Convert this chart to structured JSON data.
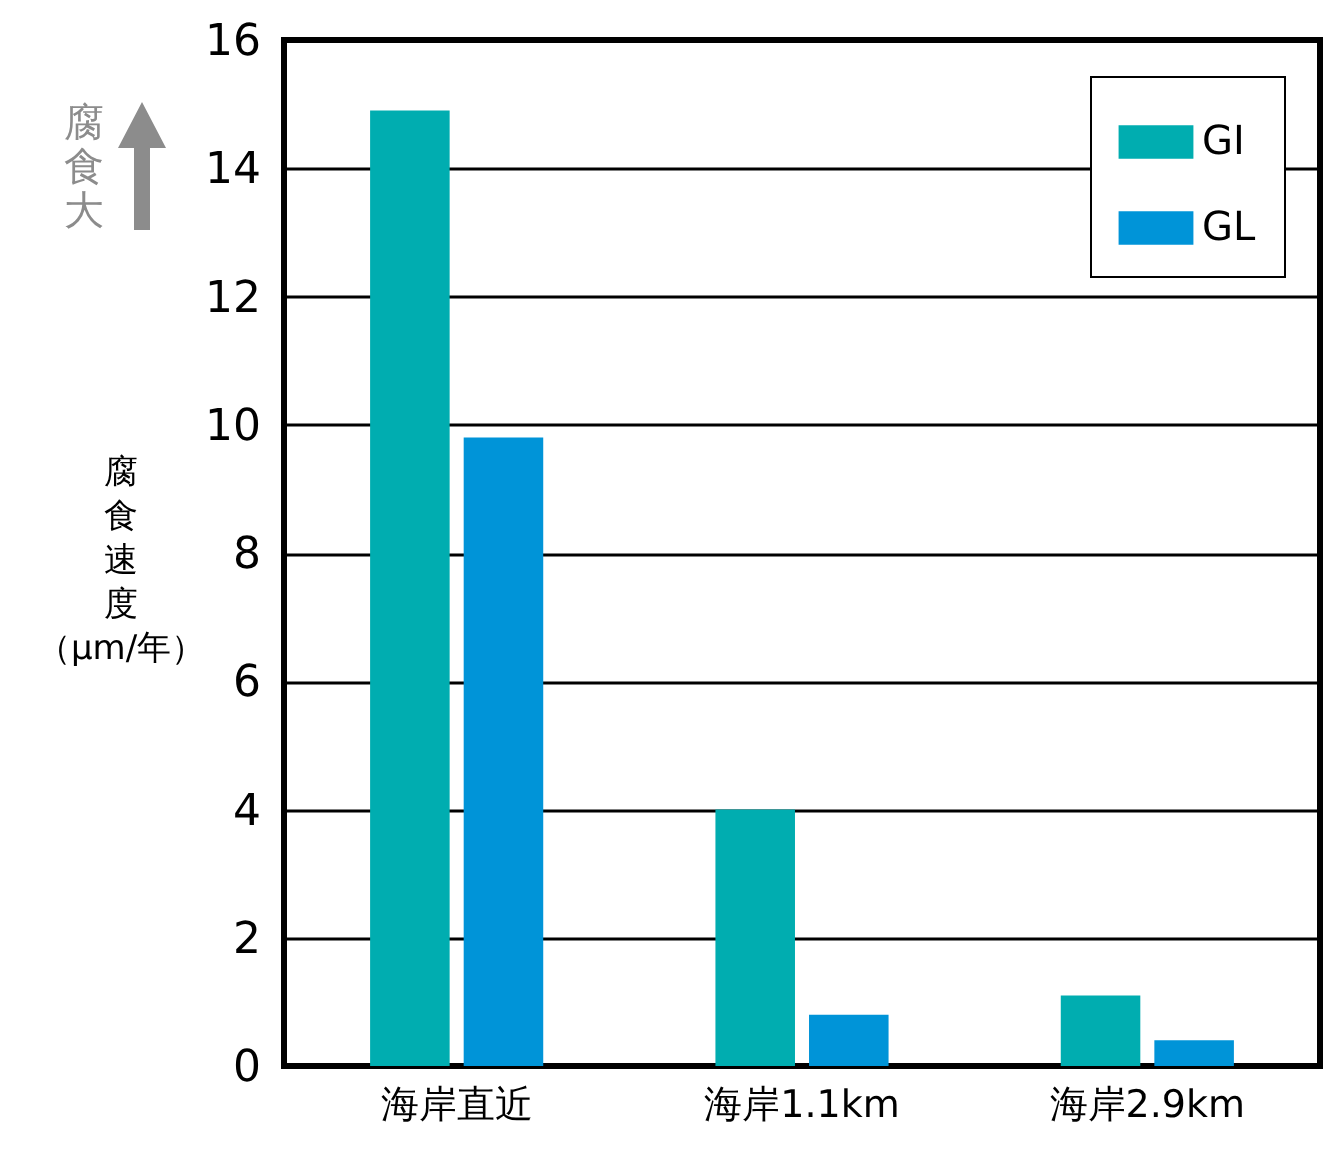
{
  "chart_data": {
    "type": "bar",
    "ylabel": "腐食速度（μm/年）",
    "categories": [
      "海岸直近",
      "海岸1.1km",
      "海岸2.9km"
    ],
    "series": [
      {
        "name": "GI",
        "color": "#00adb0",
        "values": [
          14.9,
          4.0,
          1.1
        ]
      },
      {
        "name": "GL",
        "color": "#0094d8",
        "values": [
          9.8,
          0.8,
          0.4
        ]
      }
    ],
    "ylim": [
      0,
      16
    ],
    "yticks": [
      0,
      2,
      4,
      6,
      8,
      10,
      12,
      14,
      16
    ],
    "grid": "y",
    "legend": "top right",
    "annotations": [
      "腐食大"
    ]
  }
}
